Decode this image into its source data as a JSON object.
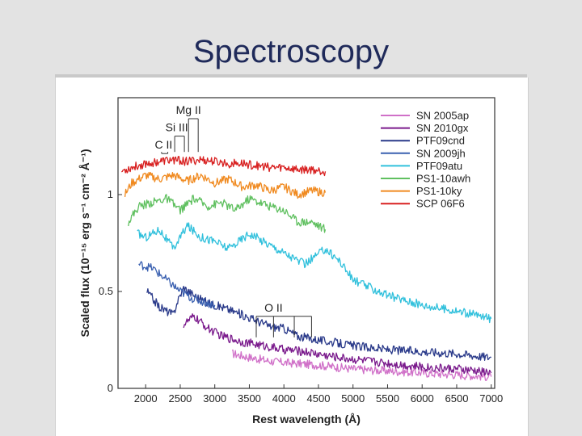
{
  "slide": {
    "title": "Spectroscopy"
  },
  "chart_data": {
    "type": "line",
    "xlabel": "Rest wavelength (Å)",
    "ylabel": "Scaled flux (10⁻¹⁵ erg s⁻¹ cm⁻² Å⁻¹)",
    "xlim": [
      1600,
      7050
    ],
    "ylim": [
      0,
      1.5
    ],
    "xticks": [
      2000,
      2500,
      3000,
      3500,
      4000,
      4500,
      5000,
      5500,
      6000,
      6500,
      7000
    ],
    "yticks": [
      0,
      0.5,
      1
    ],
    "ytick_labels": [
      "0",
      "0.5",
      "1"
    ],
    "legend_position": "top-right",
    "grid": false,
    "series": [
      {
        "name": "SN 2005ap",
        "color": "#d070c8",
        "x": [
          3250,
          3500,
          3800,
          4100,
          4500,
          5000,
          5500,
          6000,
          6500,
          7000
        ],
        "y": [
          0.18,
          0.16,
          0.14,
          0.13,
          0.12,
          0.1,
          0.09,
          0.08,
          0.07,
          0.06
        ]
      },
      {
        "name": "SN 2010gx",
        "color": "#7a1a8c",
        "x": [
          2550,
          2700,
          2900,
          3100,
          3400,
          3700,
          4000,
          4300,
          4600,
          5000,
          5500,
          6000,
          6500,
          7000
        ],
        "y": [
          0.33,
          0.37,
          0.31,
          0.27,
          0.24,
          0.22,
          0.2,
          0.19,
          0.17,
          0.15,
          0.13,
          0.11,
          0.1,
          0.08
        ]
      },
      {
        "name": "PTF09cnd",
        "color": "#2a3a8a",
        "x": [
          2020,
          2200,
          2400,
          2450,
          2550,
          2700,
          2900,
          3100,
          3400,
          3600,
          3800,
          4000,
          4200,
          4500,
          5000,
          5500,
          6000,
          6500,
          7000
        ],
        "y": [
          0.5,
          0.42,
          0.38,
          0.44,
          0.52,
          0.48,
          0.44,
          0.42,
          0.38,
          0.35,
          0.32,
          0.31,
          0.27,
          0.25,
          0.22,
          0.2,
          0.19,
          0.18,
          0.16
        ]
      },
      {
        "name": "SN 2009jh",
        "color": "#3a60b0",
        "x": [
          1900,
          2100,
          2300,
          2500,
          2700,
          3000
        ],
        "y": [
          0.64,
          0.62,
          0.56,
          0.5,
          0.46,
          0.43
        ]
      },
      {
        "name": "PTF09atu",
        "color": "#30c0dc",
        "x": [
          1880,
          2000,
          2200,
          2400,
          2600,
          2800,
          3000,
          3200,
          3500,
          3800,
          4000,
          4300,
          4600,
          4800,
          5000,
          5500,
          6000,
          6500,
          7000
        ],
        "y": [
          0.8,
          0.78,
          0.82,
          0.72,
          0.84,
          0.78,
          0.76,
          0.72,
          0.8,
          0.74,
          0.7,
          0.64,
          0.72,
          0.66,
          0.56,
          0.48,
          0.43,
          0.4,
          0.36
        ]
      },
      {
        "name": "PS1-10awh",
        "color": "#60c060",
        "x": [
          1750,
          1900,
          2100,
          2300,
          2500,
          2700,
          2900,
          3100,
          3300,
          3500,
          3800,
          4000,
          4200,
          4400,
          4600
        ],
        "y": [
          0.86,
          0.94,
          0.96,
          0.98,
          0.92,
          0.98,
          0.94,
          0.96,
          0.92,
          0.98,
          0.94,
          0.92,
          0.86,
          0.86,
          0.82
        ]
      },
      {
        "name": "PS1-10ky",
        "color": "#f08a20",
        "x": [
          1700,
          1800,
          2000,
          2200,
          2400,
          2600,
          2800,
          3000,
          3200,
          3400,
          3600,
          3800,
          4000,
          4200,
          4400,
          4600
        ],
        "y": [
          1.0,
          1.06,
          1.1,
          1.08,
          1.1,
          1.07,
          1.1,
          1.06,
          1.08,
          1.04,
          1.05,
          1.02,
          1.04,
          1.0,
          1.02,
          1.01
        ]
      },
      {
        "name": "SCP 06F6",
        "color": "#d82020",
        "x": [
          1650,
          1800,
          2000,
          2200,
          2400,
          2600,
          2800,
          3000,
          3200,
          3400,
          3600,
          3800,
          4000,
          4200,
          4400,
          4600
        ],
        "y": [
          1.12,
          1.14,
          1.16,
          1.17,
          1.18,
          1.17,
          1.18,
          1.17,
          1.16,
          1.16,
          1.15,
          1.14,
          1.14,
          1.13,
          1.13,
          1.12
        ]
      }
    ],
    "annotations": [
      {
        "text": "Mg II",
        "x": 2620,
        "y_top": 1.4,
        "lines": [
          2620,
          2760
        ]
      },
      {
        "text": "Si III",
        "x": 2450,
        "y_top": 1.31,
        "lines": [
          2420,
          2560
        ]
      },
      {
        "text": "C II",
        "x": 2260,
        "y_top": 1.22,
        "lines": [
          2230,
          2320
        ]
      },
      {
        "text": "O II",
        "x": 3850,
        "y_top": 0.38,
        "lines": [
          3600,
          3850,
          4150,
          4400
        ]
      }
    ]
  }
}
